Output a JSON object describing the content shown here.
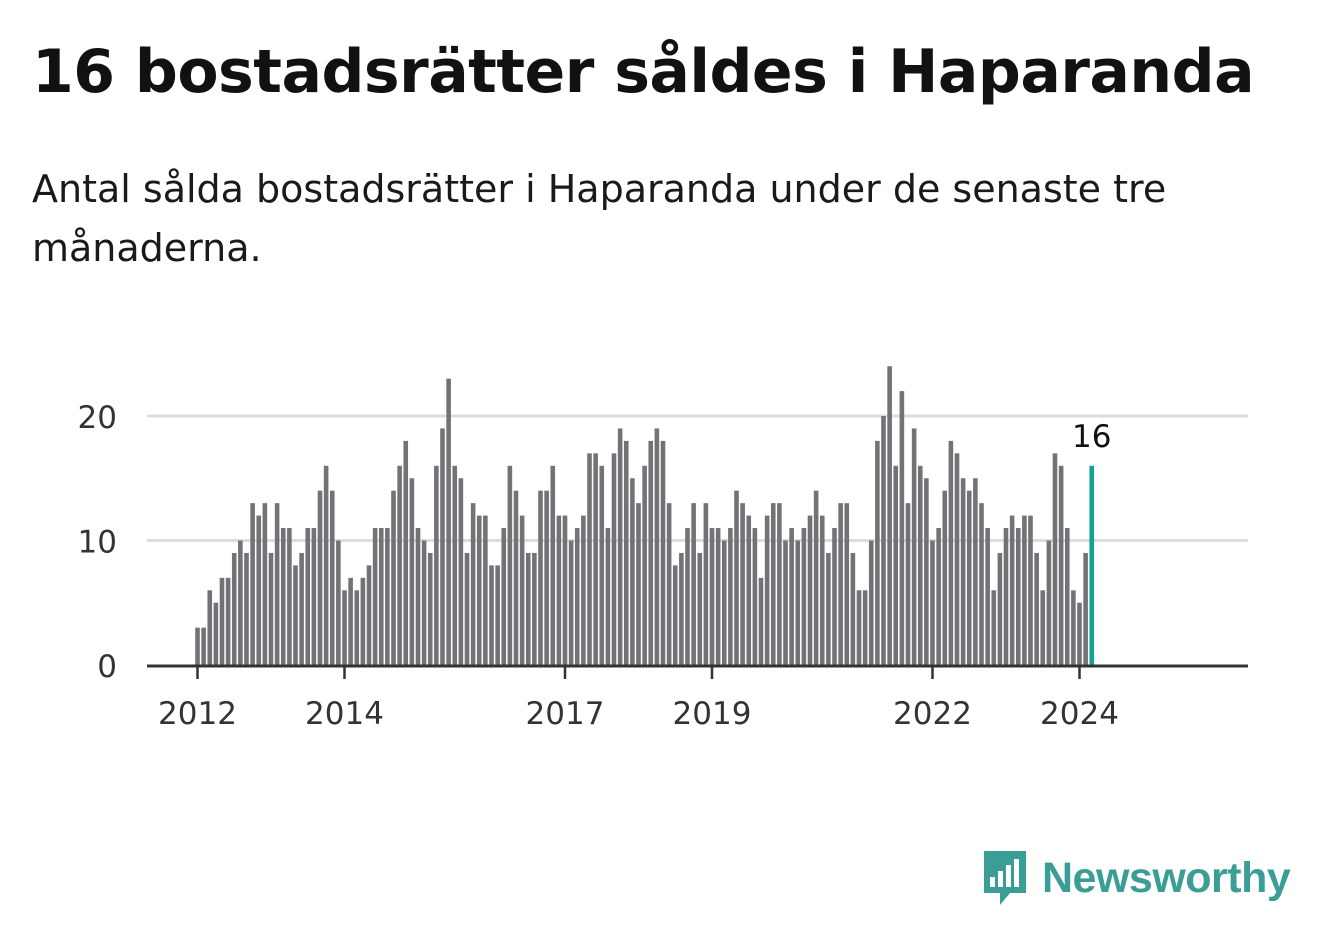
{
  "title": "16 bostadsrätter såldes i Haparanda",
  "subtitle": "Antal sålda bostadsrätter i Haparanda under de senaste tre månaderna.",
  "brand": {
    "name": "Newsworthy",
    "color": "#3a9e97"
  },
  "chart_data": {
    "type": "bar",
    "title": "16 bostadsrätter såldes i Haparanda",
    "xlabel": "",
    "ylabel": "",
    "ylim": [
      0,
      25
    ],
    "grid": true,
    "y_ticks": [
      0,
      10,
      20
    ],
    "x_ticks": [
      {
        "label": "2012",
        "index": 0
      },
      {
        "label": "2014",
        "index": 24
      },
      {
        "label": "2017",
        "index": 60
      },
      {
        "label": "2019",
        "index": 84
      },
      {
        "label": "2022",
        "index": 120
      },
      {
        "label": "2024",
        "index": 144
      }
    ],
    "bar_color": "#737277",
    "highlight_color": "#14a092",
    "highlight_label": "16",
    "first_month": "2012-01",
    "values": [
      3,
      3,
      6,
      5,
      7,
      7,
      9,
      10,
      9,
      13,
      12,
      13,
      9,
      13,
      11,
      11,
      8,
      9,
      11,
      11,
      14,
      16,
      14,
      10,
      6,
      7,
      6,
      7,
      8,
      11,
      11,
      11,
      14,
      16,
      18,
      15,
      11,
      10,
      9,
      16,
      19,
      23,
      16,
      15,
      9,
      13,
      12,
      12,
      8,
      8,
      11,
      16,
      14,
      12,
      9,
      9,
      14,
      14,
      16,
      12,
      12,
      10,
      11,
      12,
      17,
      17,
      16,
      11,
      17,
      19,
      18,
      15,
      13,
      16,
      18,
      19,
      18,
      13,
      8,
      9,
      11,
      13,
      9,
      13,
      11,
      11,
      10,
      11,
      14,
      13,
      12,
      11,
      7,
      12,
      13,
      13,
      10,
      11,
      10,
      11,
      12,
      14,
      12,
      9,
      11,
      13,
      13,
      9,
      6,
      6,
      10,
      18,
      20,
      24,
      16,
      22,
      13,
      19,
      16,
      15,
      10,
      11,
      14,
      18,
      17,
      15,
      14,
      15,
      13,
      11,
      6,
      9,
      11,
      12,
      11,
      12,
      12,
      9,
      6,
      10,
      17,
      16,
      11,
      6,
      5,
      9,
      16
    ]
  }
}
